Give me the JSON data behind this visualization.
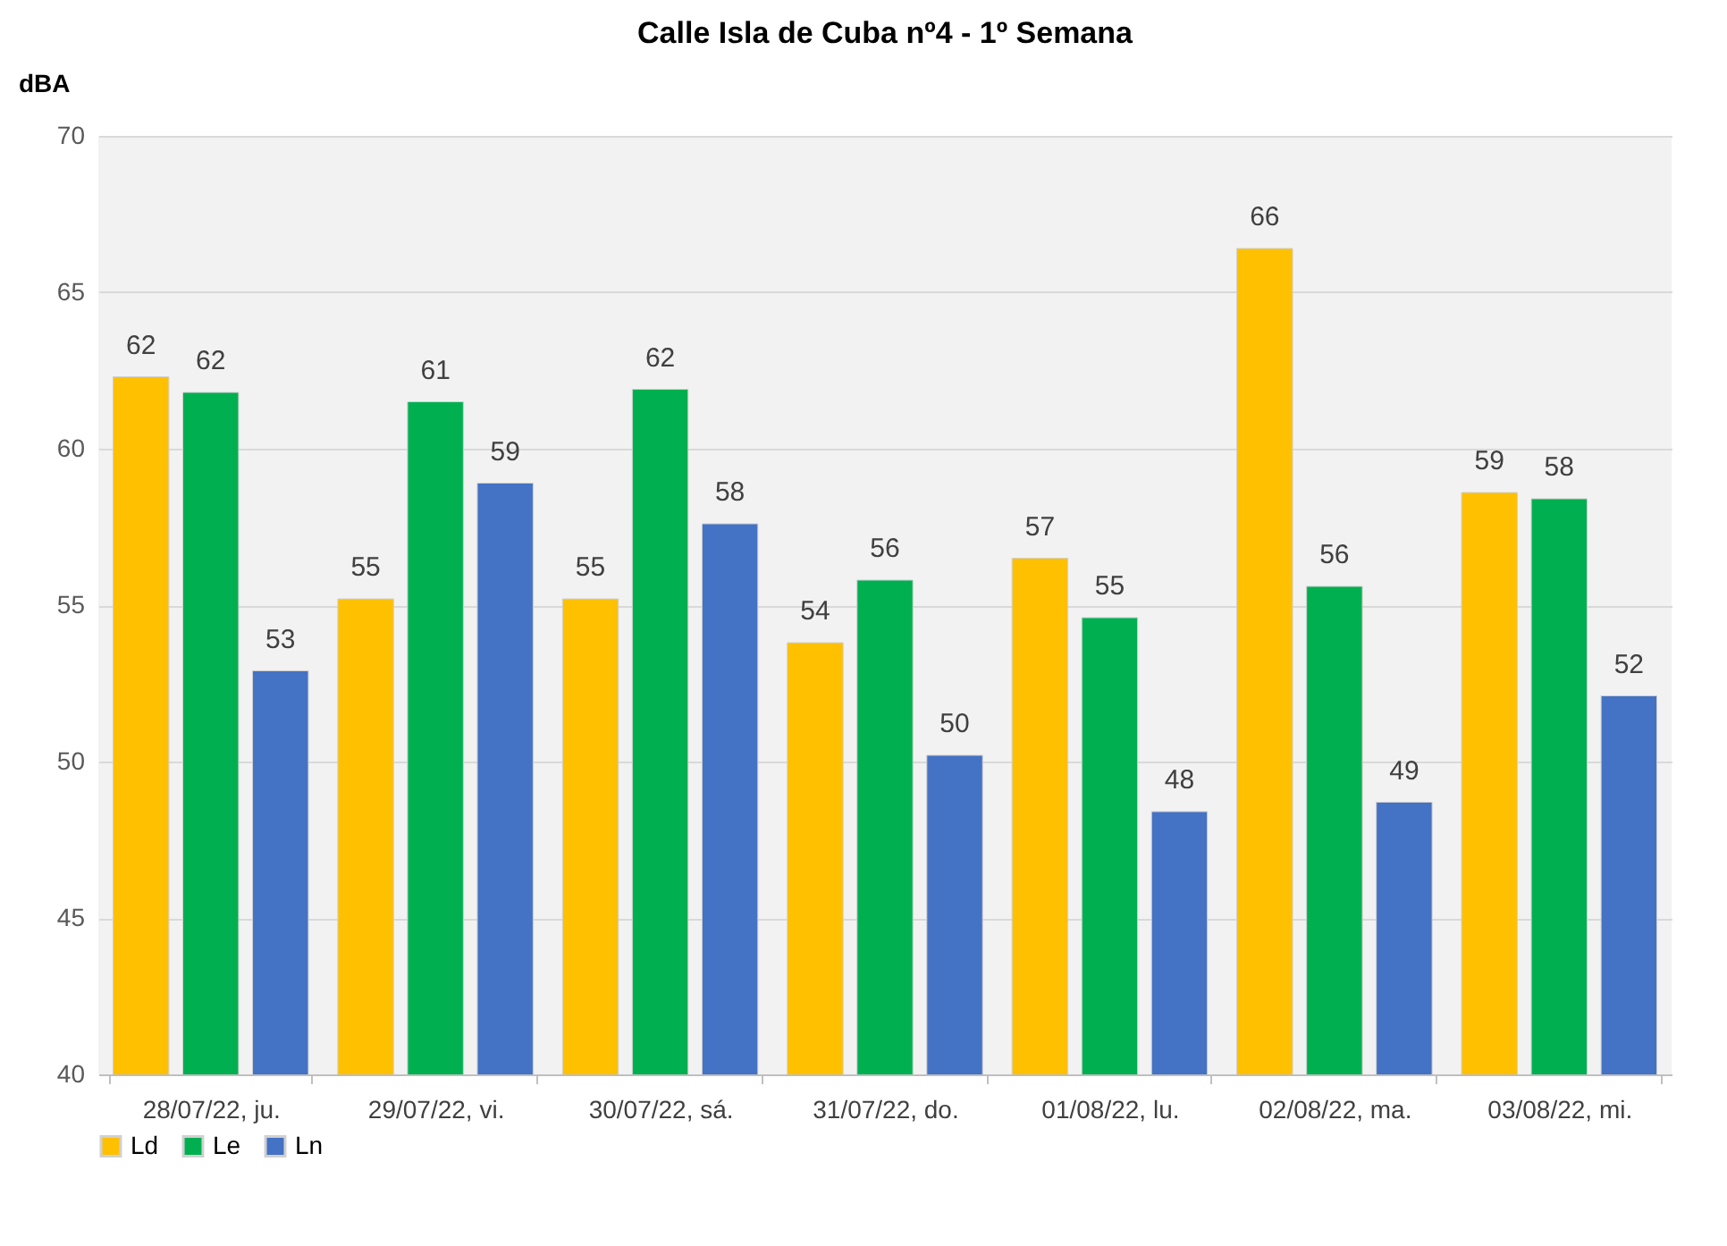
{
  "chart_data": {
    "type": "bar",
    "title": "Calle Isla de Cuba nº4 - 1º Semana",
    "ylabel": "dBA",
    "categories": [
      "28/07/22, ju.",
      "29/07/22, vi.",
      "30/07/22, sá.",
      "31/07/22, do.",
      "01/08/22, lu.",
      "02/08/22, ma.",
      "03/08/22, mi."
    ],
    "series": [
      {
        "name": "Ld",
        "color": "#ffc000",
        "values": [
          62.3,
          55.2,
          55.2,
          53.8,
          56.5,
          66.4,
          58.6
        ],
        "value_labels": [
          "62",
          "55",
          "55",
          "54",
          "57",
          "66",
          "59"
        ]
      },
      {
        "name": "Le",
        "color": "#00b050",
        "values": [
          61.8,
          61.5,
          61.9,
          55.8,
          54.6,
          55.6,
          58.4
        ],
        "value_labels": [
          "62",
          "61",
          "62",
          "56",
          "55",
          "56",
          "58"
        ]
      },
      {
        "name": "Ln",
        "color": "#4472c4",
        "values": [
          52.9,
          58.9,
          57.6,
          50.2,
          48.4,
          48.7,
          52.1
        ],
        "value_labels": [
          "53",
          "59",
          "58",
          "50",
          "48",
          "49",
          "52"
        ]
      }
    ],
    "ylim": [
      40,
      70
    ],
    "yticks": [
      40,
      45,
      50,
      55,
      60,
      65,
      70
    ],
    "grid": "y",
    "legend": "bottom"
  }
}
